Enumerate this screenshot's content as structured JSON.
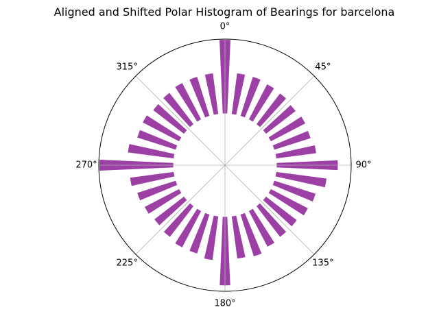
{
  "chart_data": {
    "type": "bar",
    "subtype": "polar-histogram",
    "title": "Aligned and Shifted Polar Histogram of Bearings for barcelona",
    "theta_zero": "north",
    "theta_direction": "clockwise",
    "angle_ticks": [
      "0°",
      "45°",
      "90°",
      "135°",
      "180°",
      "225°",
      "270°",
      "315°"
    ],
    "bin_width_deg": 5,
    "r_min_fraction": 0.41,
    "r_max_fraction": 1.0,
    "grid": true,
    "bar_color": "#8b1e96",
    "bar_alpha": 0.85,
    "series": [
      {
        "bin_centers_deg": [
          0,
          10,
          20,
          30,
          40,
          50,
          60,
          70,
          80,
          90,
          100,
          110,
          120,
          130,
          140,
          150,
          160,
          170,
          180,
          190,
          200,
          210,
          220,
          230,
          240,
          250,
          260,
          270,
          280,
          290,
          300,
          310,
          320,
          330,
          340,
          350
        ],
        "values": [
          0.99,
          0.55,
          0.55,
          0.53,
          0.52,
          0.5,
          0.52,
          0.51,
          0.54,
          0.82,
          0.68,
          0.58,
          0.56,
          0.52,
          0.52,
          0.54,
          0.59,
          0.57,
          0.92,
          0.59,
          0.55,
          0.55,
          0.52,
          0.5,
          0.52,
          0.54,
          0.59,
          0.99,
          0.62,
          0.54,
          0.55,
          0.52,
          0.53,
          0.55,
          0.55,
          0.55
        ]
      }
    ]
  }
}
